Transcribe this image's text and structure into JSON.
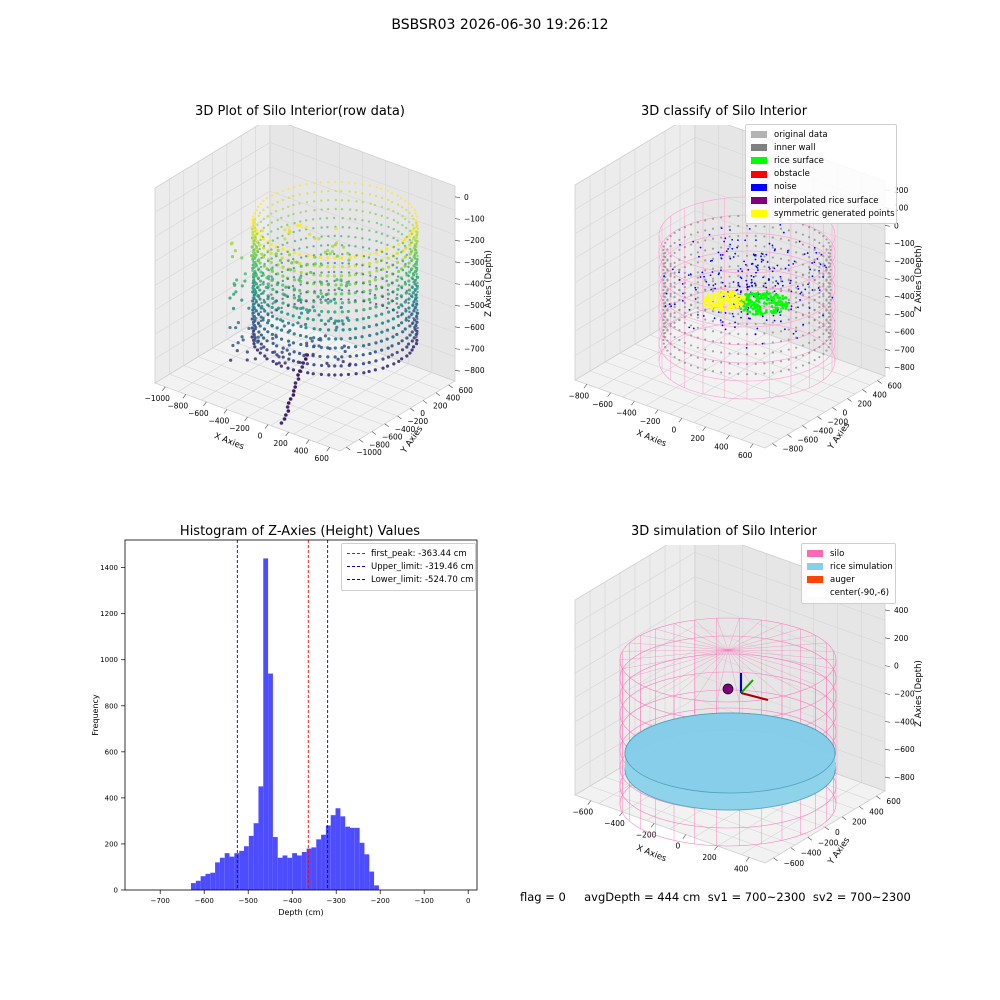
{
  "suptitle": "BSBSR03 2026-06-30 19:26:12",
  "footer": "flag = 0     avgDepth = 444 cm  sv1 = 700~2300  sv2 = 700~2300",
  "chart_data": [
    {
      "type": "scatter",
      "title": "3D Plot of Silo Interior(row data)",
      "xlabel": "X Axies",
      "ylabel": "Y Axies",
      "zlabel": "Z Axies (Depth)",
      "xticks": [
        "−1000",
        "−800",
        "−600",
        "−400",
        "−200",
        "0",
        "200",
        "400",
        "600"
      ],
      "yticks": [
        "600",
        "400",
        "200",
        "0",
        "−200",
        "−400",
        "−600",
        "−800",
        "−1000"
      ],
      "zticks": [
        "0",
        "−100",
        "−200",
        "−300",
        "−400",
        "−500",
        "−600",
        "−700",
        "−800"
      ],
      "colormap": "viridis"
    },
    {
      "type": "scatter",
      "title": "3D classify of Silo Interior",
      "xlabel": "X Axies",
      "ylabel": "Y Axies",
      "zlabel": "Z Axies (Depth)",
      "xticks": [
        "−800",
        "−600",
        "−400",
        "−200",
        "0",
        "200",
        "400",
        "600"
      ],
      "yticks": [
        "600",
        "400",
        "200",
        "0",
        "−200",
        "−400",
        "−600",
        "−800"
      ],
      "zticks": [
        "200",
        "100",
        "0",
        "−100",
        "−200",
        "−300",
        "−400",
        "−500",
        "−600",
        "−700",
        "−800"
      ],
      "legend": [
        {
          "label": "original data",
          "color": "#b3b3b3"
        },
        {
          "label": "inner wall",
          "color": "#808080"
        },
        {
          "label": "rice surface",
          "color": "#00ff00"
        },
        {
          "label": "obstacle",
          "color": "#ff0000"
        },
        {
          "label": "noise",
          "color": "#0000ff"
        },
        {
          "label": "interpolated rice surface",
          "color": "#800080"
        },
        {
          "label": "symmetric generated points",
          "color": "#ffff00"
        }
      ]
    },
    {
      "type": "bar",
      "title": "Histogram of Z-Axies (Height) Values",
      "xlabel": "Depth (cm)",
      "ylabel": "Frequency",
      "xlim": [
        -780,
        20
      ],
      "ylim": [
        0,
        1520
      ],
      "xticks": [
        -700,
        -600,
        -500,
        -400,
        -300,
        -200,
        -100,
        0
      ],
      "xtick_labels": [
        "−700",
        "−600",
        "−500",
        "−400",
        "−300",
        "−200",
        "−100",
        "0"
      ],
      "yticks": [
        0,
        200,
        400,
        600,
        800,
        1000,
        1200,
        1400
      ],
      "ytick_labels": [
        "0",
        "200",
        "400",
        "600",
        "800",
        "1000",
        "1200",
        "1400"
      ],
      "bin_start": -630,
      "bin_width": 10.95,
      "values": [
        30,
        40,
        60,
        70,
        75,
        120,
        140,
        160,
        145,
        160,
        170,
        190,
        235,
        290,
        450,
        1440,
        940,
        230,
        140,
        150,
        140,
        160,
        150,
        165,
        180,
        185,
        220,
        240,
        280,
        325,
        355,
        320,
        275,
        270,
        270,
        205,
        155,
        80,
        20
      ],
      "bar_color": "#4d4dff",
      "lines": [
        {
          "label": "first_peak: -363.44 cm",
          "x": -363.44,
          "color": "#ff0000"
        },
        {
          "label": "Upper_limit: -319.46 cm",
          "x": -319.46,
          "color": "#0000cc"
        },
        {
          "label": "Lower_limit: -524.70 cm",
          "x": -524.7,
          "color": "#0000cc"
        }
      ]
    },
    {
      "type": "scatter",
      "title": "3D simulation of Silo Interior",
      "xlabel": "X Axies",
      "ylabel": "Y Axies",
      "zlabel": "Z Axies (Depth)",
      "xticks": [
        "−600",
        "−400",
        "−200",
        "0",
        "200",
        "400"
      ],
      "yticks": [
        "600",
        "400",
        "200",
        "0",
        "−200",
        "−400",
        "−600"
      ],
      "zticks": [
        "400",
        "200",
        "0",
        "−200",
        "−400",
        "−600",
        "−800"
      ],
      "legend": [
        {
          "label": "silo",
          "color": "#ff69b4"
        },
        {
          "label": "rice simulation",
          "color": "#87ceeb"
        },
        {
          "label": "auger",
          "color": "#ff4500"
        },
        {
          "label": "center(-90,-6)",
          "color": "#ffffff"
        }
      ]
    }
  ]
}
